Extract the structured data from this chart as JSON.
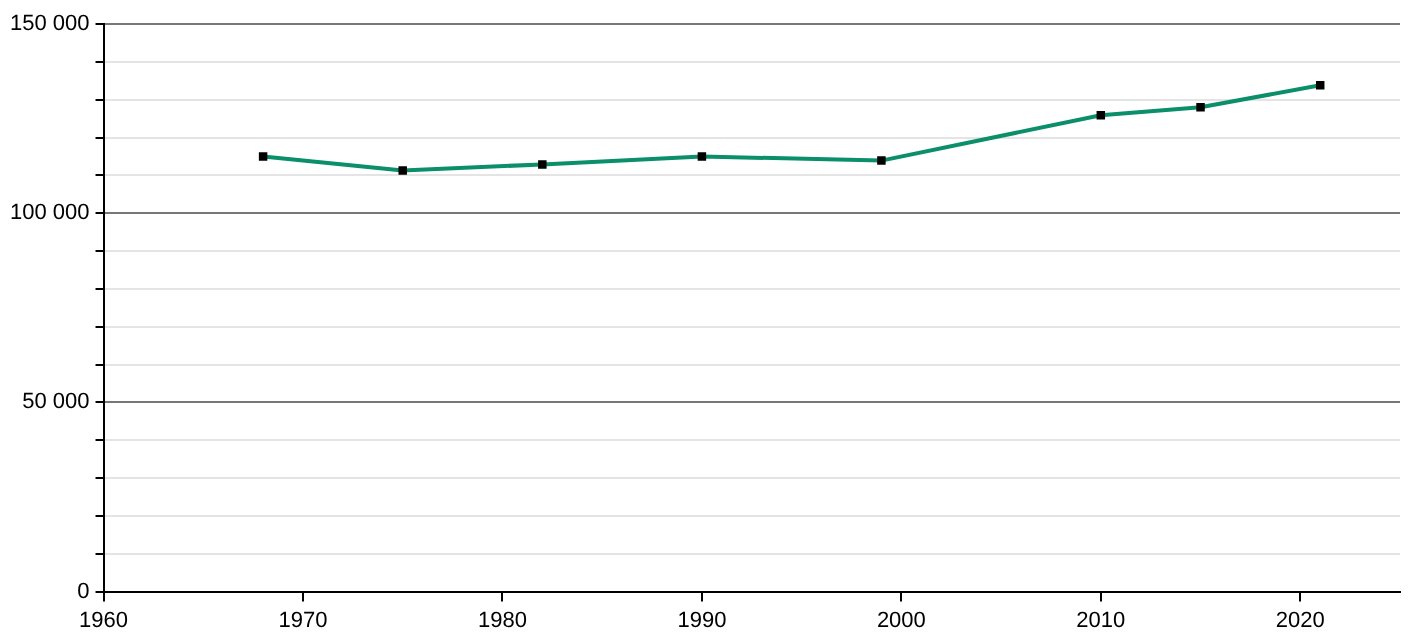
{
  "chart_data": {
    "type": "line",
    "x": [
      1968,
      1975,
      1982,
      1990,
      1999,
      2010,
      2015,
      2021
    ],
    "series": [
      {
        "color": "#0a8f6a",
        "values": [
          115000,
          111300,
          112900,
          115000,
          113900,
          125900,
          128000,
          133800
        ]
      }
    ],
    "xlim": [
      1960,
      2025
    ],
    "xticks": [
      1960,
      1970,
      1980,
      1990,
      2000,
      2010,
      2020
    ],
    "ylim": [
      0,
      150000
    ],
    "yticks": [
      {
        "value": 0,
        "label": "0"
      },
      {
        "value": 10000,
        "label": null
      },
      {
        "value": 20000,
        "label": null
      },
      {
        "value": 30000,
        "label": null
      },
      {
        "value": 40000,
        "label": null
      },
      {
        "value": 50000,
        "label": "50 000"
      },
      {
        "value": 60000,
        "label": null
      },
      {
        "value": 70000,
        "label": null
      },
      {
        "value": 80000,
        "label": null
      },
      {
        "value": 90000,
        "label": null
      },
      {
        "value": 100000,
        "label": "100 000"
      },
      {
        "value": 110000,
        "label": null
      },
      {
        "value": 120000,
        "label": null
      },
      {
        "value": 130000,
        "label": null
      },
      {
        "value": 140000,
        "label": null
      },
      {
        "value": 150000,
        "label": "150 000"
      }
    ],
    "grid": "y",
    "marker": "square",
    "line_style": "solid",
    "legend": false
  }
}
